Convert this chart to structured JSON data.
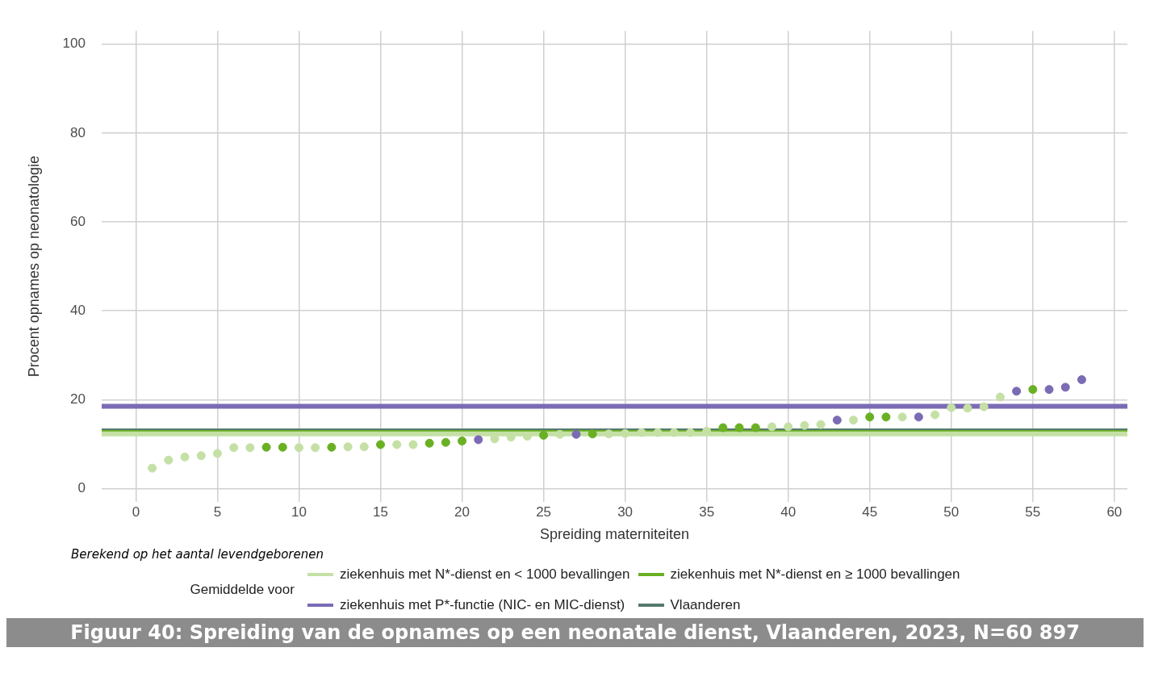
{
  "chart_data": {
    "type": "scatter",
    "title": "Figuur 40: Spreiding van de opnames op een neonatale dienst, Vlaanderen, 2023, N=60 897",
    "xlabel": "Spreiding materniteiten",
    "ylabel": "Procent opnames op neonatologie",
    "legend_title": "Gemiddelde voor",
    "annotations": [
      "Berekend op het aantal levendgeborenen"
    ],
    "xlim": [
      -2.1,
      60.8
    ],
    "ylim": [
      -3,
      103
    ],
    "xticks": [
      0,
      5,
      10,
      15,
      20,
      25,
      30,
      35,
      40,
      45,
      50,
      55,
      60
    ],
    "yticks": [
      0,
      20,
      40,
      60,
      80,
      100
    ],
    "grid": true,
    "legend": "bottom",
    "marker": "circle",
    "series": [
      {
        "color": "#c5e0a5",
        "x": [
          1,
          2,
          3,
          4,
          5,
          6,
          7,
          10,
          11,
          13,
          14,
          16,
          17,
          22,
          23,
          24,
          26,
          29,
          30,
          31,
          32,
          33,
          34,
          35,
          39,
          40,
          41,
          42,
          44,
          47,
          49,
          50,
          51,
          52,
          53
        ],
        "values": [
          4.6,
          6.4,
          7.1,
          7.4,
          7.9,
          9.2,
          9.2,
          9.2,
          9.2,
          9.4,
          9.4,
          9.9,
          9.9,
          11.2,
          11.6,
          11.8,
          12.2,
          12.3,
          12.4,
          12.6,
          12.6,
          12.6,
          12.6,
          12.9,
          13.9,
          13.9,
          14.2,
          14.4,
          15.4,
          16.1,
          16.6,
          18.2,
          18.1,
          18.4,
          20.6
        ]
      },
      {
        "color": "#6ab023",
        "x": [
          8,
          9,
          12,
          15,
          18,
          19,
          20,
          25,
          28,
          36,
          37,
          38,
          45,
          46,
          55
        ],
        "values": [
          9.3,
          9.3,
          9.3,
          9.9,
          10.2,
          10.4,
          10.7,
          12.0,
          12.3,
          13.7,
          13.7,
          13.7,
          16.1,
          16.1,
          22.3
        ]
      },
      {
        "color": "#7b6bb5",
        "x": [
          21,
          27,
          43,
          48,
          54,
          56,
          57,
          58
        ],
        "values": [
          11.0,
          12.2,
          15.4,
          16.1,
          21.9,
          22.3,
          22.8,
          24.5
        ]
      },
      {
        "type": "line",
        "marker": "none",
        "name": "ziekenhuis met N*-dienst en < 1000 bevallingen",
        "color": "#c5e0a5",
        "x": [
          -2.1,
          60.8
        ],
        "values": [
          12.3,
          12.3
        ]
      },
      {
        "type": "line",
        "marker": "none",
        "name": "ziekenhuis met N*-dienst en ≥ 1000 bevallingen",
        "color": "#6ab023",
        "x": [
          -2.1,
          60.8
        ],
        "values": [
          12.6,
          12.6
        ]
      },
      {
        "type": "line",
        "marker": "none",
        "name": "ziekenhuis met P*-functie (NIC- en MIC-dienst)",
        "color": "#7b6bb5",
        "x": [
          -2.1,
          60.8
        ],
        "values": [
          18.5,
          18.5
        ]
      },
      {
        "type": "line",
        "marker": "none",
        "name": "Vlaanderen",
        "color": "#557a6e",
        "x": [
          -2.1,
          60.8
        ],
        "values": [
          13.0,
          13.0
        ]
      }
    ]
  }
}
